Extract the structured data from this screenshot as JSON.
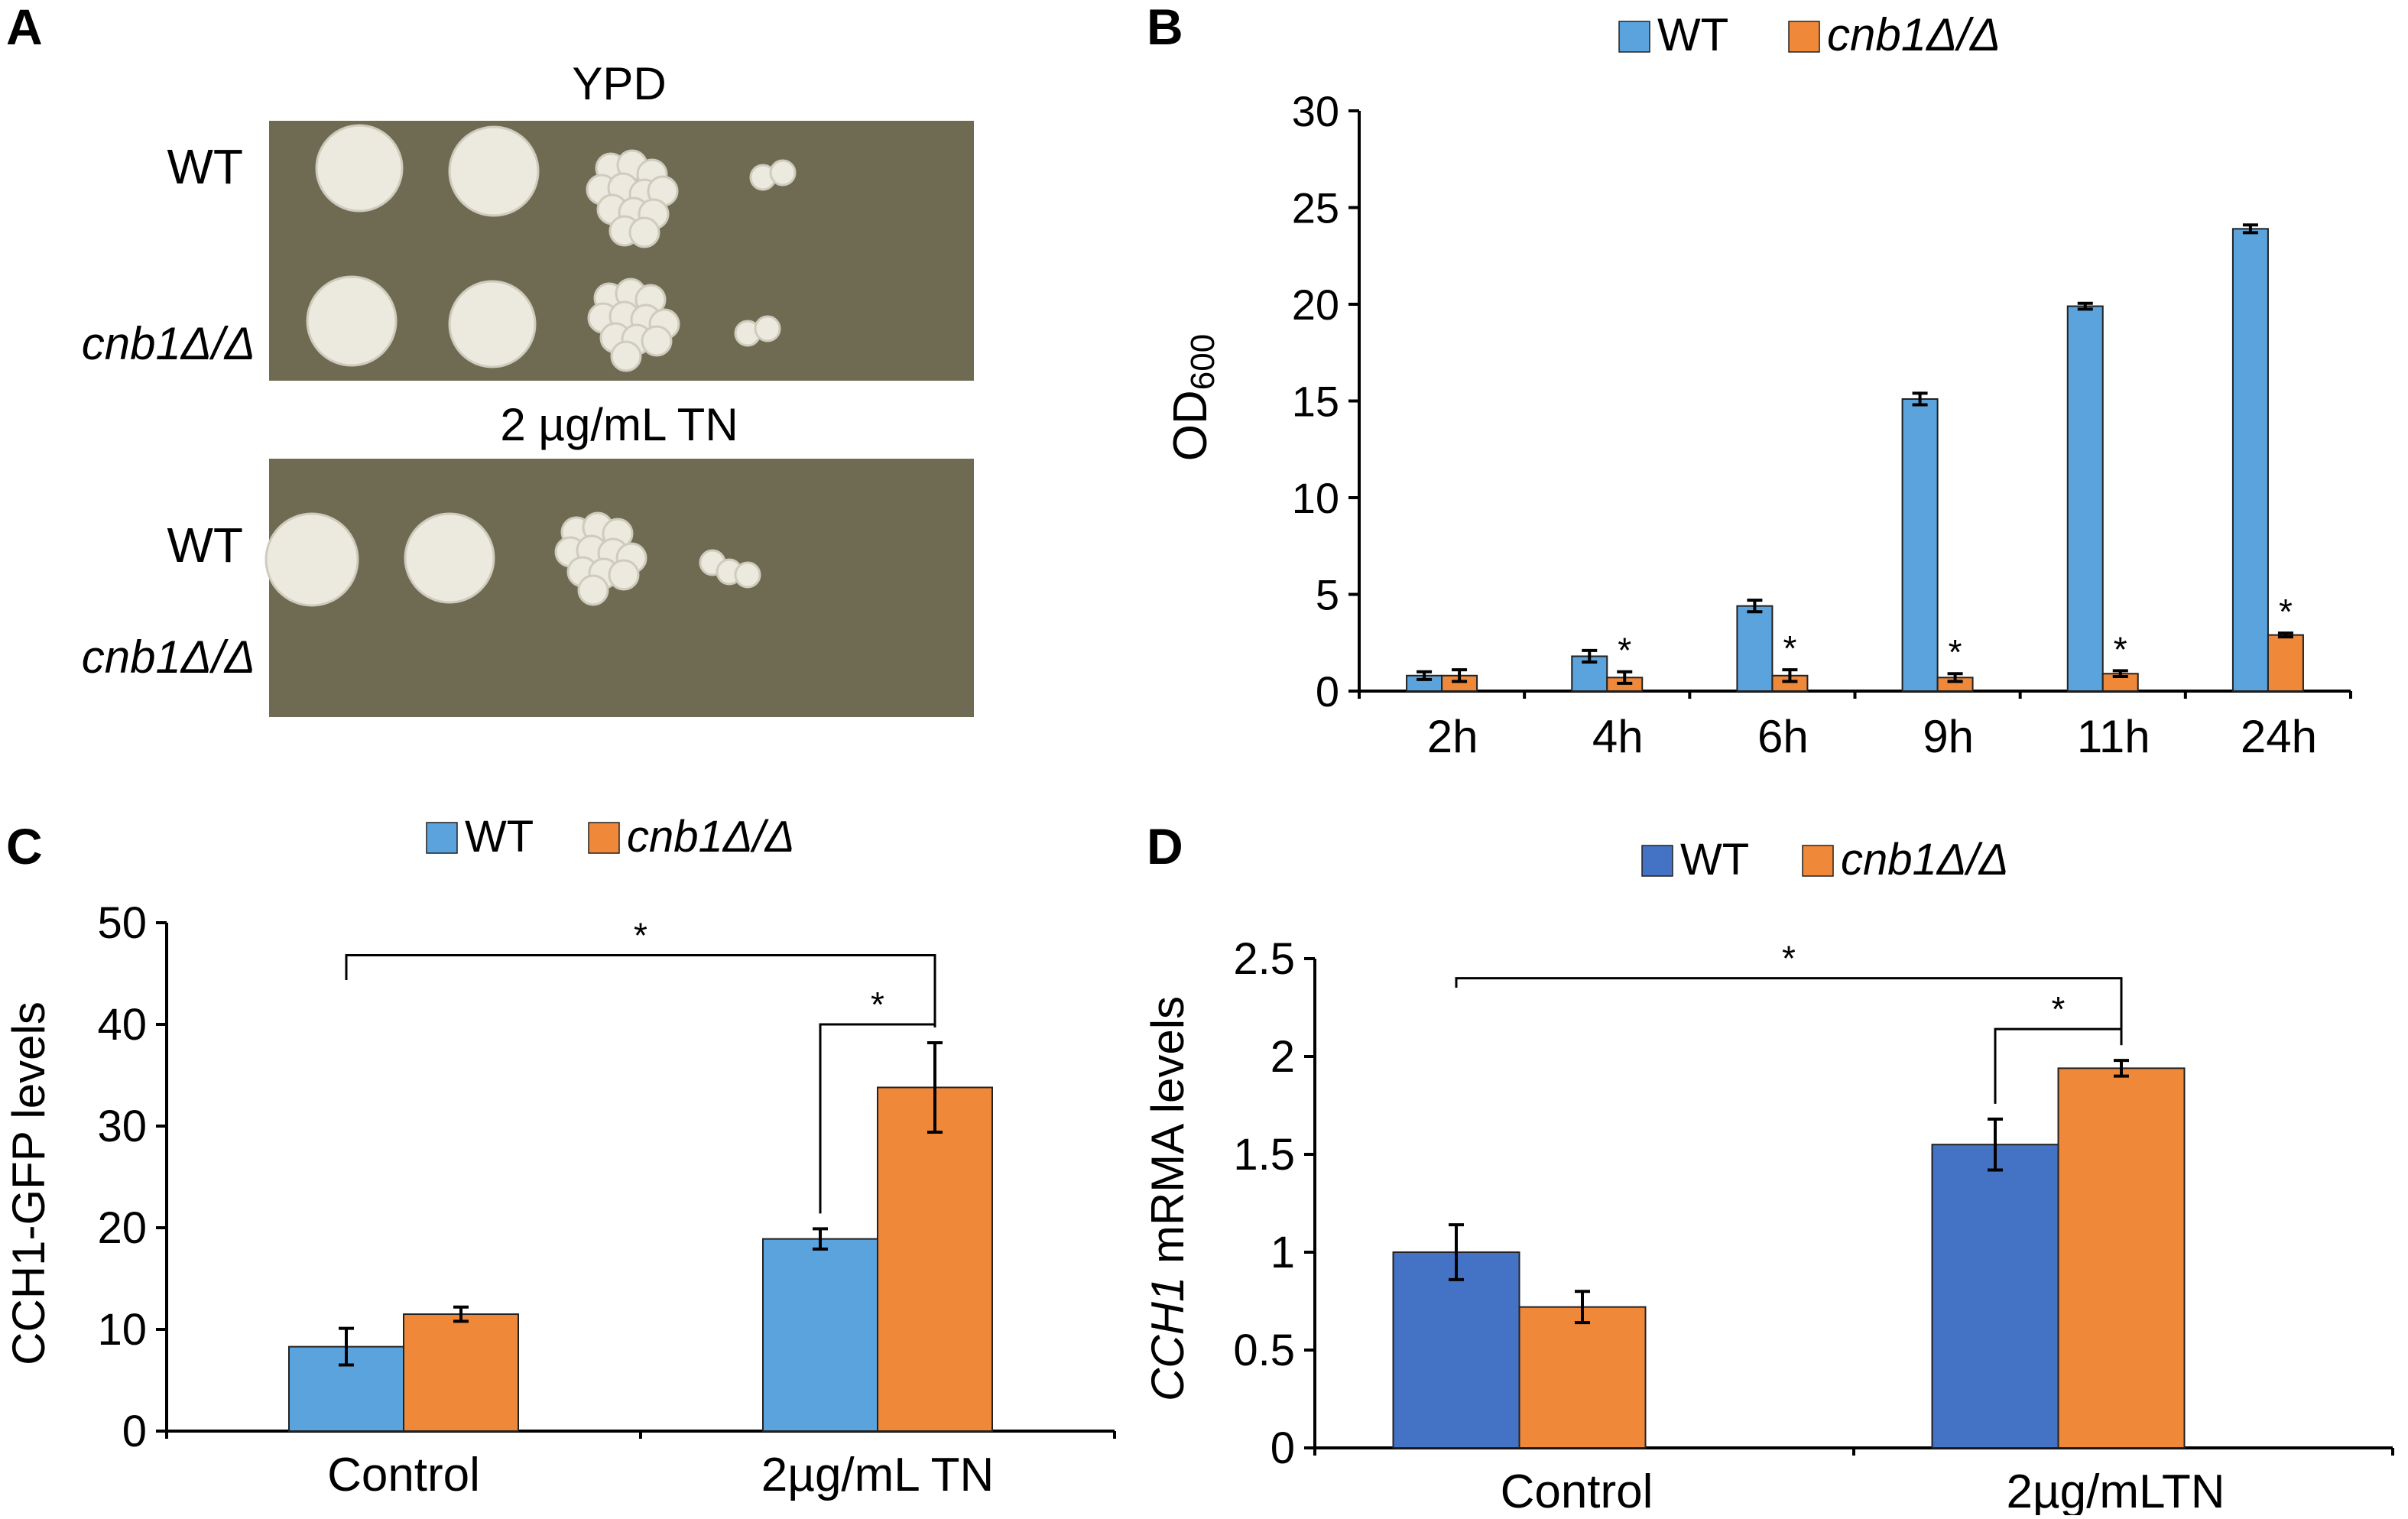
{
  "panels": {
    "A": {
      "letter": "A",
      "plate1_title": "YPD",
      "plate2_title": "2 µg/mL TN",
      "plate1_rows": [
        "WT",
        "cnb1Δ/Δ"
      ],
      "plate2_rows": [
        "WT",
        "cnb1Δ/Δ"
      ]
    },
    "B": {
      "letter": "B"
    },
    "C": {
      "letter": "C"
    },
    "D": {
      "letter": "D"
    }
  },
  "colors": {
    "wt_light": "#5ba3dc",
    "wt_dark": "#4472c4",
    "mutant": "#f0883a",
    "plate_bg": "#6e6b52",
    "colony": "#ece9df"
  },
  "chart_data": [
    {
      "panel": "B",
      "type": "bar",
      "categories": [
        "2h",
        "4h",
        "6h",
        "9h",
        "11h",
        "24h"
      ],
      "series": [
        {
          "name": "WT",
          "values": [
            0.8,
            1.8,
            4.4,
            15.1,
            19.9,
            23.9
          ],
          "errors": [
            0.2,
            0.3,
            0.3,
            0.3,
            0.15,
            0.2
          ]
        },
        {
          "name": "cnb1Δ/Δ",
          "values": [
            0.8,
            0.7,
            0.8,
            0.7,
            0.9,
            2.9
          ],
          "errors": [
            0.3,
            0.3,
            0.3,
            0.2,
            0.15,
            0.1
          ]
        }
      ],
      "significance": [
        "",
        "*",
        "*",
        "*",
        "*",
        "*"
      ],
      "ylabel": "OD",
      "ylabel_sub": "600",
      "xlabel": "",
      "ylim": [
        0,
        30
      ],
      "yticks": [
        0,
        5,
        10,
        15,
        20,
        25,
        30
      ],
      "legend": "top"
    },
    {
      "panel": "C",
      "type": "bar",
      "categories": [
        "Control",
        "2µg/mL TN"
      ],
      "series": [
        {
          "name": "WT",
          "values": [
            8.3,
            18.9
          ],
          "errors": [
            1.8,
            1.0
          ]
        },
        {
          "name": "cnb1Δ/Δ",
          "values": [
            11.5,
            33.8
          ],
          "errors": [
            0.7,
            4.4
          ]
        }
      ],
      "ylabel": "CCH1-GFP  levels",
      "xlabel": "",
      "ylim": [
        0,
        50
      ],
      "yticks": [
        0,
        10,
        20,
        30,
        40,
        50
      ],
      "brackets": [
        {
          "from": "Control",
          "to": "2µg/mL TN cnb1Δ/Δ",
          "label": "*"
        },
        {
          "from": "2µg/mL TN WT",
          "to": "2µg/mL TN cnb1Δ/Δ",
          "label": "*"
        }
      ],
      "legend": "top"
    },
    {
      "panel": "D",
      "type": "bar",
      "categories": [
        "Control",
        "2µg/mLTN"
      ],
      "series": [
        {
          "name": "WT",
          "values": [
            1.0,
            1.55
          ],
          "errors": [
            0.14,
            0.13
          ]
        },
        {
          "name": "cnb1Δ/Δ",
          "values": [
            0.72,
            1.94
          ],
          "errors": [
            0.08,
            0.04
          ]
        }
      ],
      "ylabel_italic": "CCH1",
      "ylabel_rest": " mRMA levels",
      "xlabel": "",
      "ylim": [
        0,
        2.5
      ],
      "yticks": [
        "0",
        "0.5",
        "1",
        "1.5",
        "2",
        "2.5"
      ],
      "brackets": [
        {
          "from": "Control",
          "to": "2µg/mLTN cnb1Δ/Δ",
          "label": "*"
        },
        {
          "from": "2µg/mLTN WT",
          "to": "2µg/mLTN cnb1Δ/Δ",
          "label": "*"
        }
      ],
      "legend": "top"
    }
  ]
}
